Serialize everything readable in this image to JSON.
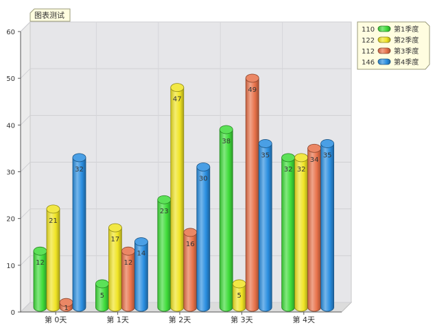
{
  "chart_data": {
    "type": "bar",
    "title": "图表测试",
    "categories": [
      "第 0天",
      "第 1天",
      "第 2天",
      "第 3天",
      "第 4天"
    ],
    "series": [
      {
        "name": "第1季度",
        "total": "110",
        "values": [
          12,
          5,
          23,
          38,
          32
        ]
      },
      {
        "name": "第2季度",
        "total": "122",
        "values": [
          21,
          17,
          47,
          5,
          32
        ]
      },
      {
        "name": "第3季度",
        "total": "112",
        "values": [
          1,
          12,
          16,
          49,
          34
        ]
      },
      {
        "name": "第4季度",
        "total": "146",
        "values": [
          32,
          14,
          30,
          35,
          35
        ]
      }
    ],
    "ylim": [
      0,
      60
    ],
    "yticks": [
      "0",
      "10",
      "20",
      "30",
      "40",
      "50",
      "60"
    ],
    "grid": true,
    "legend_position": "top-right",
    "colors": [
      "#3fdc3a",
      "#f0e424",
      "#e8724a",
      "#2a8ee0"
    ]
  }
}
